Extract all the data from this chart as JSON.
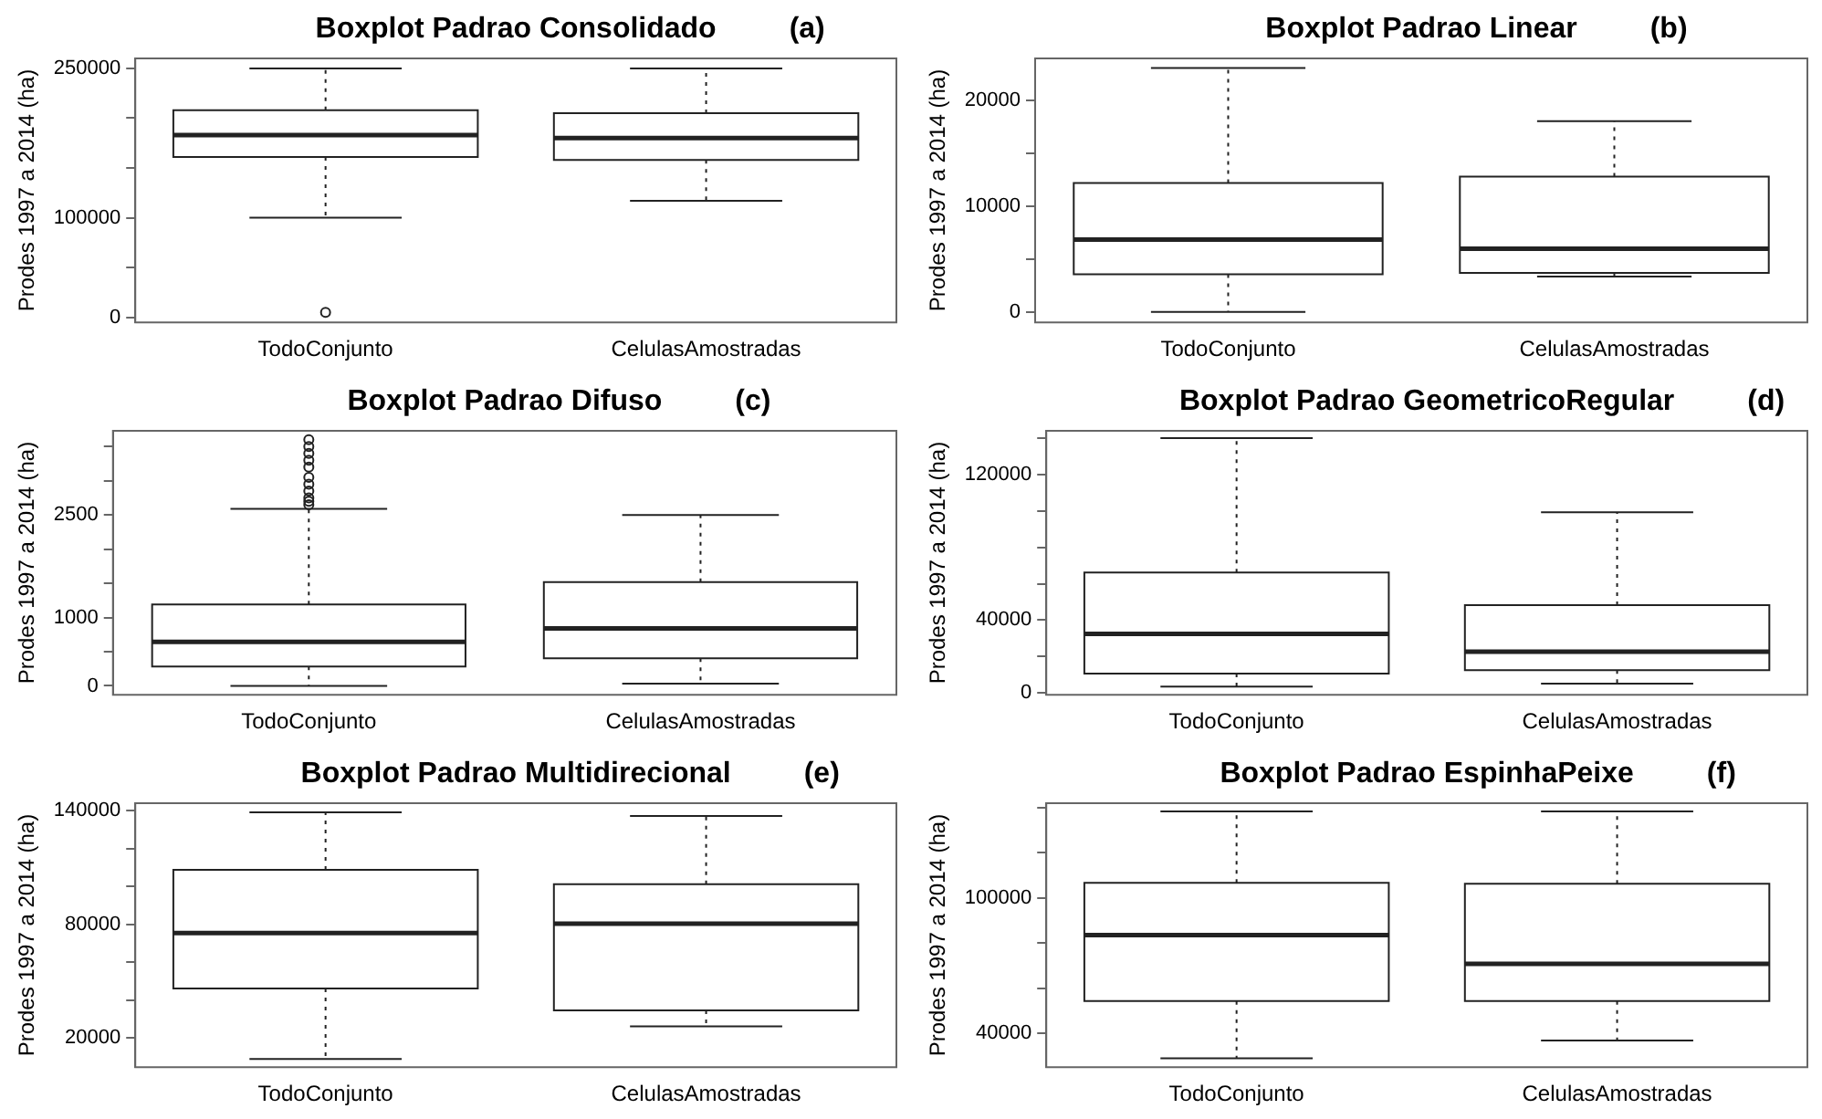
{
  "chart_data": [
    {
      "type": "box",
      "title": "Boxplot Padrao Consolidado",
      "annotations": [
        "(a)"
      ],
      "ylabel": "Prodes 1997 a 2014 (ha)",
      "categories": [
        "TodoConjunto",
        "CelulasAmostradas"
      ],
      "boxes": [
        {
          "low": 100000,
          "q1": 161000,
          "median": 183000,
          "q3": 208000,
          "high": 250000,
          "outliers": [
            5000
          ]
        },
        {
          "low": 117000,
          "q1": 158000,
          "median": 180000,
          "q3": 205000,
          "high": 250000
        }
      ],
      "ylim": [
        -5000,
        260000
      ],
      "yticks": [
        0,
        {
          "value": 50000,
          "label": null
        },
        100000,
        {
          "value": 150000,
          "label": null
        },
        {
          "value": 200000,
          "label": null
        },
        250000
      ],
      "grid": false,
      "legend": false
    },
    {
      "type": "box",
      "title": "Boxplot Padrao Linear",
      "annotations": [
        "(b)"
      ],
      "ylabel": "Prodes 1997 a 2014 (ha)",
      "categories": [
        "TodoConjunto",
        "CelulasAmostradas"
      ],
      "boxes": [
        {
          "low": 0,
          "q1": 3560,
          "median": 6850,
          "q3": 12200,
          "high": 23100
        },
        {
          "low": 3350,
          "q1": 3690,
          "median": 5970,
          "q3": 12800,
          "high": 18050
        }
      ],
      "ylim": [
        -1000,
        24000
      ],
      "yticks": [
        0,
        {
          "value": 5000,
          "label": null
        },
        10000,
        {
          "value": 15000,
          "label": null
        },
        20000
      ],
      "grid": false,
      "legend": false
    },
    {
      "type": "box",
      "title": "Boxplot Padrao Difuso",
      "annotations": [
        "(c)"
      ],
      "ylabel": "Prodes 1997 a 2014 (ha)",
      "categories": [
        "TodoConjunto",
        "CelulasAmostradas"
      ],
      "boxes": [
        {
          "low": 0,
          "q1": 284,
          "median": 644,
          "q3": 1190,
          "high": 2590,
          "outliers": [
            2650,
            2700,
            2750,
            2850,
            2950,
            3050,
            3200,
            3300,
            3400,
            3500,
            3600
          ]
        },
        {
          "low": 33,
          "q1": 404,
          "median": 841,
          "q3": 1518,
          "high": 2500
        }
      ],
      "ylim": [
        -130,
        3730
      ],
      "yticks": [
        0,
        {
          "value": 500,
          "label": null
        },
        1000,
        {
          "value": 1500,
          "label": null
        },
        {
          "value": 2000,
          "label": null
        },
        2500,
        {
          "value": 3000,
          "label": null
        },
        {
          "value": 3500,
          "label": null
        }
      ],
      "grid": false,
      "legend": false
    },
    {
      "type": "box",
      "title": "Boxplot Padrao GeometricoRegular",
      "annotations": [
        "(d)"
      ],
      "ylabel": "Prodes 1997 a 2014 (ha)",
      "categories": [
        "TodoConjunto",
        "CelulasAmostradas"
      ],
      "boxes": [
        {
          "low": 3500,
          "q1": 10600,
          "median": 32500,
          "q3": 66200,
          "high": 140000
        },
        {
          "low": 5100,
          "q1": 12500,
          "median": 22700,
          "q3": 48200,
          "high": 99200
        }
      ],
      "ylim": [
        -1000,
        144000
      ],
      "yticks": [
        0,
        {
          "value": 20000,
          "label": null
        },
        40000,
        {
          "value": 60000,
          "label": null
        },
        {
          "value": 80000,
          "label": null
        },
        {
          "value": 100000,
          "label": null
        },
        120000,
        {
          "value": 140000,
          "label": null
        }
      ],
      "grid": false,
      "legend": false
    },
    {
      "type": "box",
      "title": "Boxplot Padrao Multidirecional",
      "annotations": [
        "(e)"
      ],
      "ylabel": "Prodes 1997 a 2014 (ha)",
      "categories": [
        "TodoConjunto",
        "CelulasAmostradas"
      ],
      "boxes": [
        {
          "low": 8900,
          "q1": 46200,
          "median": 75400,
          "q3": 108800,
          "high": 139200
        },
        {
          "low": 26200,
          "q1": 34600,
          "median": 80400,
          "q3": 101200,
          "high": 137300
        }
      ],
      "ylim": [
        4600,
        144000
      ],
      "yticks": [
        20000,
        {
          "value": 40000,
          "label": null
        },
        {
          "value": 60000,
          "label": null
        },
        80000,
        {
          "value": 100000,
          "label": null
        },
        {
          "value": 120000,
          "label": null
        },
        140000
      ],
      "grid": false,
      "legend": false
    },
    {
      "type": "box",
      "title": "Boxplot Padrao EspinhaPeixe",
      "annotations": [
        "(f)"
      ],
      "ylabel": "Prodes 1997 a 2014 (ha)",
      "categories": [
        "TodoConjunto",
        "CelulasAmostradas"
      ],
      "boxes": [
        {
          "low": 28900,
          "q1": 54300,
          "median": 83500,
          "q3": 106700,
          "high": 138400
        },
        {
          "low": 36800,
          "q1": 54300,
          "median": 70800,
          "q3": 106300,
          "high": 138400
        }
      ],
      "ylim": [
        25000,
        142000
      ],
      "yticks": [
        40000,
        {
          "value": 60000,
          "label": null
        },
        {
          "value": 80000,
          "label": null
        },
        100000,
        {
          "value": 120000,
          "label": null
        },
        {
          "value": 140000,
          "label": null
        }
      ],
      "grid": false,
      "legend": false
    }
  ]
}
